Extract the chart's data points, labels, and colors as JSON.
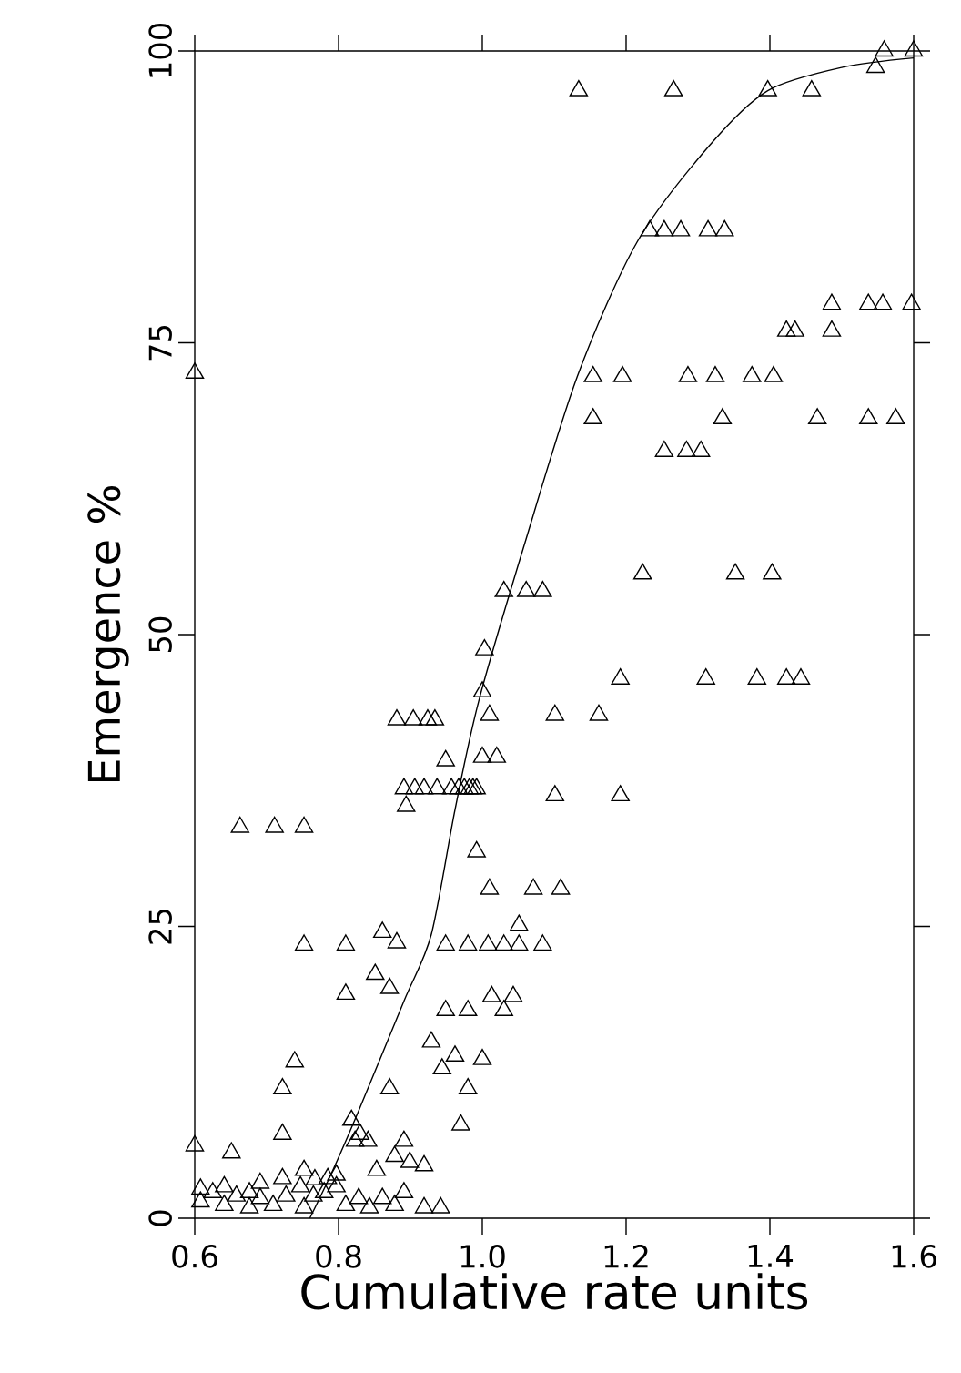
{
  "chart_data": {
    "type": "scatter",
    "xlabel": "Cumulative rate units",
    "ylabel": "Emergence %",
    "marker": "triangle",
    "xlim": [
      0.6,
      1.6
    ],
    "ylim": [
      0,
      100
    ],
    "xticks": [
      0.6,
      0.8,
      {
        "value": 1,
        "label": "1.0"
      },
      1.2,
      1.4,
      1.6
    ],
    "yticks": [
      0,
      25,
      50,
      75,
      100
    ],
    "series": [
      {
        "color": "#000000",
        "x": [
          1.134,
          1.266,
          1.397,
          1.458,
          1.559,
          1.6,
          1.547,
          1.233,
          1.253,
          1.276,
          1.314,
          1.337,
          1.486,
          1.537,
          1.557,
          1.597,
          1.423,
          1.435,
          1.486,
          1.154,
          1.195,
          1.286,
          1.324,
          1.375,
          1.405,
          1.154,
          1.334,
          1.466,
          1.537,
          1.575,
          1.253,
          1.284,
          1.304,
          1.223,
          1.352,
          1.403,
          1.03,
          1.061,
          1.084,
          1.003,
          1.192,
          1.311,
          1.382,
          1.423,
          1.443,
          1.0,
          1.01,
          1.101,
          1.162,
          1.0,
          1.02,
          0.967,
          0.982,
          0.992,
          1.101,
          1.192,
          0.992,
          1.01,
          1.071,
          1.109,
          1.051,
          0.881,
          0.904,
          0.924,
          0.934,
          0.949,
          0.891,
          0.906,
          0.919,
          0.937,
          0.957,
          0.975,
          0.987,
          0.894,
          0.663,
          0.711,
          0.752,
          0.752,
          0.81,
          0.949,
          0.98,
          1.008,
          1.03,
          1.051,
          1.084,
          0.861,
          0.881,
          0.851,
          0.871,
          0.81,
          0.949,
          0.98,
          1.013,
          1.043,
          1.03,
          0.929,
          0.962,
          1.0,
          0.944,
          0.98,
          0.97,
          0.739,
          0.722,
          0.722,
          0.6,
          0.651,
          0.871,
          0.818,
          0.83,
          0.841,
          0.823,
          0.891,
          0.878,
          0.899,
          0.919,
          0.853,
          0.891,
          0.919,
          0.942,
          0.608,
          0.625,
          0.641,
          0.658,
          0.676,
          0.691,
          0.709,
          0.727,
          0.747,
          0.765,
          0.78,
          0.797,
          0.81,
          0.828,
          0.843,
          0.861,
          0.767,
          0.752,
          0.785,
          0.797,
          0.722,
          0.608,
          0.641,
          0.676,
          0.752,
          0.878,
          0.691,
          0.6
        ],
        "values": [
          96.6,
          96.6,
          96.6,
          96.6,
          100,
          100,
          98.6,
          84.6,
          84.6,
          84.6,
          84.6,
          84.6,
          78.3,
          78.3,
          78.3,
          78.3,
          76,
          76,
          76,
          72.1,
          72.1,
          72.1,
          72.1,
          72.1,
          72.1,
          68.5,
          68.5,
          68.5,
          68.5,
          68.5,
          65.7,
          65.7,
          65.7,
          55.2,
          55.2,
          55.2,
          53.7,
          53.7,
          53.7,
          48.7,
          46.2,
          46.2,
          46.2,
          46.2,
          46.2,
          45.1,
          43.1,
          43.1,
          43.1,
          39.5,
          39.5,
          36.8,
          36.8,
          36.8,
          36.2,
          36.2,
          31.4,
          28.2,
          28.2,
          28.2,
          25.1,
          42.7,
          42.7,
          42.7,
          42.7,
          39.2,
          36.8,
          36.8,
          36.8,
          36.8,
          36.8,
          36.8,
          36.8,
          35.3,
          33.5,
          33.5,
          33.5,
          23.4,
          23.4,
          23.4,
          23.4,
          23.4,
          23.4,
          23.4,
          23.4,
          24.5,
          23.6,
          20.9,
          19.7,
          19.2,
          17.8,
          17.8,
          19,
          19,
          17.8,
          15.1,
          13.9,
          13.6,
          12.8,
          11.1,
          8,
          13.4,
          11.1,
          7.2,
          6.2,
          5.6,
          11.1,
          8.4,
          7.2,
          6.6,
          6.6,
          6.6,
          5.3,
          4.8,
          4.5,
          4.1,
          2.2,
          0.9,
          0.9,
          2.5,
          2.2,
          2.7,
          1.9,
          2.2,
          1.7,
          1.1,
          1.9,
          2.7,
          1.9,
          2.2,
          2.7,
          1.1,
          1.7,
          0.9,
          1.7,
          3.3,
          4.1,
          3.4,
          3.7,
          3.4,
          1.4,
          1.1,
          0.9,
          0.9,
          1.1,
          3,
          72.4
        ]
      },
      {
        "type": "line",
        "marker": "none",
        "color": "#000000",
        "x": [
          0.76,
          0.792,
          0.828,
          0.891,
          0.929,
          0.962,
          0.995,
          1.058,
          1.132,
          1.215,
          1.316,
          1.397,
          1.501,
          1.6
        ],
        "values": [
          0,
          4.1,
          9.2,
          18.6,
          24.3,
          35,
          44.3,
          57.6,
          72.1,
          83.6,
          91.9,
          96.6,
          98.6,
          99.4
        ]
      }
    ]
  }
}
